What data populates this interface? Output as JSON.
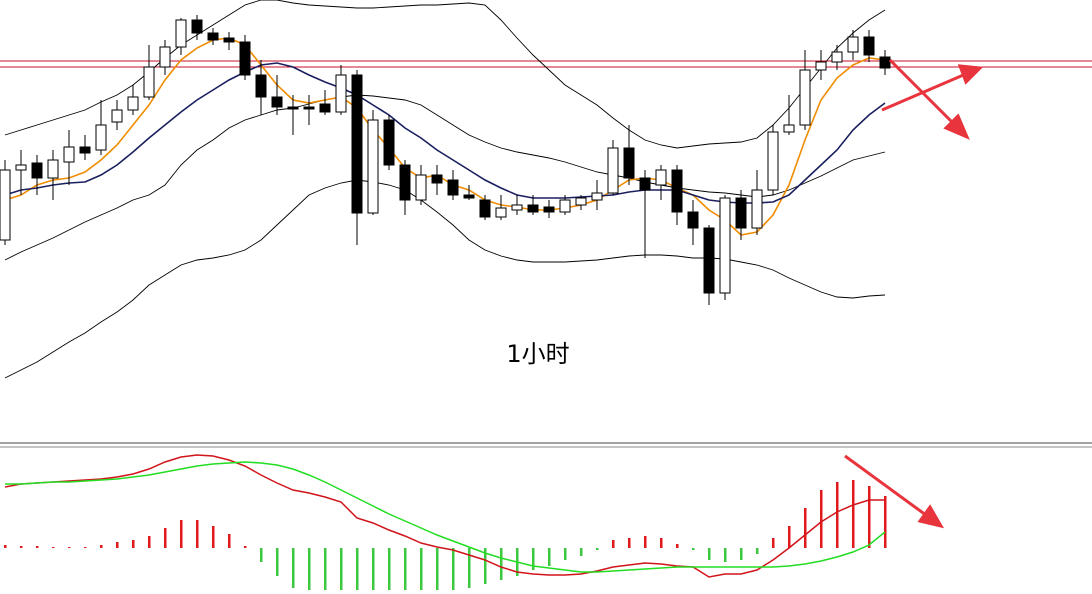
{
  "chart_data": [
    {
      "type": "candlestick",
      "annotation": "1小时",
      "ylim": [
        0,
        440
      ],
      "open": [
        200,
        270,
        277,
        262,
        278,
        293,
        290,
        318,
        330,
        343,
        373,
        393,
        420,
        407,
        402,
        398,
        365,
        343,
        333,
        333,
        336,
        328,
        365,
        227,
        320,
        275,
        240,
        265,
        260,
        245,
        240,
        223,
        230,
        235,
        233,
        228,
        235,
        240,
        247,
        292,
        262,
        255,
        270,
        228,
        212,
        147,
        242,
        212,
        250,
        308,
        315,
        370,
        378,
        388,
        403,
        383
      ],
      "high": [
        280,
        290,
        285,
        290,
        310,
        305,
        340,
        340,
        355,
        395,
        400,
        422,
        425,
        412,
        408,
        405,
        380,
        365,
        345,
        345,
        350,
        375,
        370,
        330,
        325,
        280,
        275,
        275,
        270,
        255,
        245,
        245,
        245,
        245,
        240,
        245,
        245,
        260,
        300,
        315,
        270,
        275,
        275,
        240,
        215,
        245,
        250,
        270,
        315,
        345,
        390,
        390,
        395,
        410,
        410,
        390
      ],
      "low": [
        195,
        245,
        245,
        240,
        255,
        280,
        285,
        310,
        325,
        340,
        365,
        385,
        400,
        395,
        390,
        360,
        325,
        325,
        305,
        315,
        325,
        325,
        195,
        225,
        270,
        225,
        235,
        245,
        240,
        240,
        220,
        220,
        225,
        225,
        222,
        225,
        230,
        230,
        245,
        255,
        182,
        240,
        215,
        195,
        135,
        140,
        200,
        205,
        245,
        305,
        310,
        360,
        370,
        380,
        378,
        365
      ],
      "close": [
        270,
        275,
        262,
        280,
        293,
        287,
        315,
        330,
        343,
        373,
        393,
        420,
        407,
        400,
        398,
        365,
        343,
        333,
        331,
        331,
        328,
        365,
        227,
        320,
        275,
        240,
        265,
        257,
        245,
        242,
        223,
        232,
        235,
        228,
        228,
        240,
        242,
        247,
        292,
        262,
        250,
        270,
        228,
        212,
        147,
        242,
        212,
        250,
        308,
        315,
        370,
        378,
        388,
        403,
        385,
        372
      ],
      "up_color": "#ffffff",
      "down_color": "#000000",
      "hlines": [
        379,
        373
      ],
      "hline_color": "#c8102e",
      "series": [
        {
          "color": "#f08c00",
          "values": [
            240,
            245,
            255,
            260,
            262,
            268,
            280,
            295,
            315,
            335,
            360,
            380,
            392,
            400,
            402,
            395,
            375,
            355,
            340,
            337,
            340,
            343,
            332,
            310,
            292,
            272,
            262,
            265,
            255,
            250,
            240,
            235,
            233,
            230,
            230,
            232,
            235,
            240,
            250,
            260,
            262,
            260,
            252,
            245,
            230,
            220,
            205,
            208,
            225,
            255,
            300,
            340,
            362,
            375,
            382,
            380
          ]
        },
        {
          "color": "#1a1f5e",
          "values": [
            245,
            250,
            252,
            255,
            257,
            258,
            265,
            275,
            288,
            302,
            315,
            328,
            340,
            350,
            360,
            368,
            375,
            377,
            373,
            365,
            358,
            352,
            345,
            335,
            325,
            312,
            302,
            290,
            280,
            270,
            260,
            252,
            245,
            242,
            242,
            242,
            243,
            244,
            245,
            248,
            250,
            250,
            250,
            245,
            240,
            238,
            237,
            237,
            238,
            245,
            260,
            275,
            290,
            310,
            325,
            337
          ]
        },
        {
          "color": "#000000",
          "values": [
            305,
            310,
            315,
            320,
            325,
            330,
            338,
            345,
            355,
            368,
            382,
            395,
            405,
            415,
            425,
            435,
            440,
            440,
            437,
            435,
            434,
            433,
            432,
            432,
            433,
            434,
            435,
            435,
            436,
            437,
            435,
            420,
            402,
            385,
            370,
            355,
            345,
            335,
            322,
            310,
            300,
            295,
            292,
            294,
            296,
            297,
            298,
            302,
            315,
            332,
            352,
            372,
            392,
            407,
            420,
            430
          ]
        },
        {
          "color": "#000000",
          "values": [
            180,
            188,
            195,
            202,
            210,
            218,
            225,
            232,
            240,
            245,
            255,
            275,
            290,
            300,
            312,
            320,
            325,
            330,
            332,
            336,
            340,
            343,
            345,
            344,
            342,
            340,
            335,
            325,
            315,
            305,
            298,
            292,
            288,
            285,
            282,
            278,
            273,
            268,
            265,
            262,
            258,
            255,
            252,
            250,
            248,
            247,
            245,
            243,
            245,
            250,
            257,
            264,
            272,
            280,
            284,
            288
          ]
        },
        {
          "color": "#000000",
          "values": [
            62,
            70,
            78,
            88,
            98,
            107,
            118,
            128,
            140,
            155,
            165,
            175,
            180,
            182,
            185,
            190,
            200,
            215,
            230,
            245,
            252,
            257,
            260,
            258,
            255,
            250,
            240,
            228,
            215,
            200,
            190,
            184,
            180,
            178,
            178,
            178,
            179,
            180,
            182,
            184,
            185,
            185,
            184,
            182,
            182,
            181,
            178,
            175,
            170,
            162,
            155,
            148,
            143,
            142,
            144,
            145
          ]
        }
      ]
    },
    {
      "type": "macd",
      "ylim": [
        -46,
        100
      ],
      "up_color": "#e0191b",
      "down_color": "#3cc83c",
      "values": [
        3,
        2,
        2,
        1,
        1,
        1,
        3,
        6,
        8,
        12,
        20,
        28,
        28,
        22,
        14,
        2,
        -14,
        -28,
        -40,
        -42,
        -42,
        -42,
        -42,
        -42,
        -42,
        -42,
        -42,
        -42,
        -42,
        -40,
        -36,
        -32,
        -28,
        -22,
        -18,
        -12,
        -8,
        -2,
        8,
        10,
        12,
        10,
        4,
        -2,
        -12,
        -14,
        -12,
        -6,
        10,
        22,
        40,
        58,
        66,
        68,
        62,
        52
      ],
      "series": [
        {
          "color": "#d0141a",
          "values": [
            61,
            64,
            65,
            66,
            67,
            68,
            69,
            71,
            74,
            79,
            86,
            91,
            93,
            92,
            88,
            82,
            73,
            65,
            58,
            55,
            51,
            46,
            30,
            25,
            18,
            12,
            5,
            1,
            -2,
            -7,
            -12,
            -19,
            -24,
            -26,
            -27,
            -27,
            -26,
            -23,
            -19,
            -17,
            -15,
            -16,
            -18,
            -19,
            -29,
            -26,
            -26,
            -22,
            -12,
            0,
            13,
            26,
            36,
            43,
            48,
            48
          ]
        },
        {
          "color": "#22dd22",
          "values": [
            64,
            64,
            65,
            66,
            66,
            67,
            68,
            69,
            71,
            73,
            76,
            79,
            82,
            84,
            85,
            86,
            85,
            83,
            79,
            73,
            66,
            58,
            50,
            42,
            34,
            27,
            20,
            13,
            7,
            1,
            -5,
            -10,
            -14,
            -18,
            -20,
            -22,
            -24,
            -24,
            -23,
            -22,
            -21,
            -20,
            -19,
            -19,
            -19,
            -19,
            -19,
            -19,
            -19,
            -18,
            -16,
            -13,
            -9,
            -4,
            3,
            16
          ]
        }
      ]
    }
  ]
}
